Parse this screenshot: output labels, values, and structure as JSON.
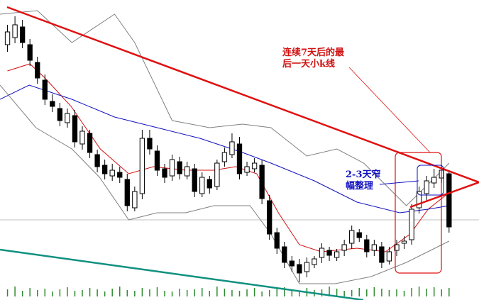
{
  "chart_data": {
    "type": "candlestick",
    "xlim": [
      -1,
      63
    ],
    "ylim": [
      0,
      423
    ],
    "open": [
      360,
      370,
      385,
      360,
      335,
      310,
      280,
      270,
      250,
      260,
      220,
      235,
      205,
      190,
      175,
      180,
      170,
      130,
      150,
      228,
      210,
      185,
      175,
      195,
      175,
      185,
      150,
      170,
      160,
      195,
      205,
      220,
      180,
      185,
      190,
      140,
      95,
      75,
      55,
      50,
      40,
      50,
      60,
      70,
      60,
      70,
      80,
      95,
      85,
      70,
      75,
      55,
      70,
      80,
      85,
      130,
      150,
      165,
      172,
      178
    ],
    "high": [
      388,
      400,
      395,
      368,
      343,
      318,
      290,
      278,
      270,
      268,
      245,
      240,
      212,
      198,
      192,
      188,
      178,
      160,
      240,
      240,
      218,
      192,
      205,
      202,
      195,
      192,
      180,
      175,
      198,
      215,
      235,
      230,
      195,
      200,
      198,
      148,
      102,
      82,
      62,
      58,
      60,
      62,
      80,
      75,
      72,
      85,
      105,
      100,
      92,
      85,
      82,
      75,
      85,
      90,
      135,
      160,
      175,
      185,
      188,
      182
    ],
    "low": [
      350,
      362,
      355,
      330,
      305,
      275,
      265,
      245,
      243,
      215,
      212,
      200,
      180,
      170,
      168,
      165,
      125,
      125,
      142,
      205,
      175,
      165,
      168,
      170,
      170,
      145,
      145,
      150,
      155,
      188,
      200,
      170,
      175,
      180,
      135,
      85,
      65,
      45,
      40,
      25,
      32,
      45,
      52,
      55,
      55,
      62,
      72,
      82,
      60,
      62,
      45,
      50,
      62,
      72,
      78,
      122,
      140,
      158,
      165,
      95
    ],
    "close": [
      378,
      388,
      363,
      338,
      313,
      283,
      273,
      253,
      263,
      223,
      238,
      208,
      188,
      178,
      183,
      173,
      133,
      153,
      228,
      213,
      183,
      173,
      198,
      178,
      188,
      153,
      173,
      158,
      193,
      208,
      223,
      178,
      188,
      193,
      143,
      93,
      73,
      53,
      48,
      38,
      53,
      58,
      73,
      63,
      68,
      78,
      98,
      88,
      68,
      78,
      53,
      68,
      78,
      83,
      128,
      153,
      168,
      173,
      183,
      103
    ],
    "candle_color": "#000000",
    "volume": [
      10,
      14,
      8,
      12,
      9,
      11,
      7,
      10,
      13,
      8,
      9,
      12,
      10,
      7,
      11,
      14,
      9,
      8,
      12,
      10,
      13,
      8,
      7,
      11,
      9,
      10,
      12,
      8,
      14,
      11,
      9,
      8,
      10,
      12,
      7,
      9,
      11,
      13,
      10,
      8,
      12,
      9,
      10,
      14,
      11,
      8,
      9,
      12,
      10,
      13,
      11,
      9,
      10,
      8,
      12,
      14,
      11,
      13,
      10,
      12
    ],
    "volume_ylim": [
      0,
      40
    ],
    "volume_color": "#2e8b2e",
    "lines": [
      {
        "color": "#d01010",
        "x": [
          0,
          3,
          5,
          8.5,
          12.4,
          16.2,
          19.5,
          23.8,
          27.6,
          30.5,
          33.3,
          36.2,
          39,
          41.9,
          46.7,
          50.5,
          53.8,
          56.2,
          58.6
        ],
        "values": [
          323,
          333,
          313,
          273,
          213,
          178,
          188,
          183,
          183,
          188,
          178,
          123,
          78,
          68,
          73,
          68,
          93,
          128,
          148
        ]
      },
      {
        "color": "#1010c0",
        "x": [
          -1,
          2.9,
          8.6,
          14.3,
          20,
          25.7,
          31.4,
          35.2,
          41,
          46.7,
          52.4,
          56.2,
          59
        ],
        "values": [
          283,
          303,
          283,
          258,
          243,
          228,
          208,
          193,
          168,
          138,
          123,
          128,
          133
        ]
      },
      {
        "color": "#808080",
        "x": [
          -1,
          4,
          8.6,
          14.3,
          17,
          22,
          27,
          31.4,
          35.2,
          40,
          44,
          47.6,
          53.3,
          58.1,
          59
        ],
        "values": [
          403,
          408,
          363,
          403,
          363,
          253,
          243,
          248,
          243,
          203,
          213,
          193,
          133,
          183,
          193
        ]
      },
      {
        "color": "#808080",
        "x": [
          -1,
          3.8,
          8.6,
          12.3,
          16.2,
          20,
          23.8,
          27.6,
          32.4,
          35.2,
          39,
          43.8,
          48.6,
          53.3,
          57.1,
          59
        ],
        "values": [
          303,
          243,
          213,
          173,
          113,
          123,
          123,
          133,
          133,
          93,
          23,
          23,
          33,
          53,
          73,
          83
        ]
      }
    ],
    "annotations": [
      {
        "lines": [
          "连续7天后的最",
          "后一天小k线"
        ],
        "color": "#d01010"
      },
      {
        "lines": [
          "2-3天窄",
          "幅整理"
        ],
        "color": "#1010c0"
      }
    ]
  }
}
